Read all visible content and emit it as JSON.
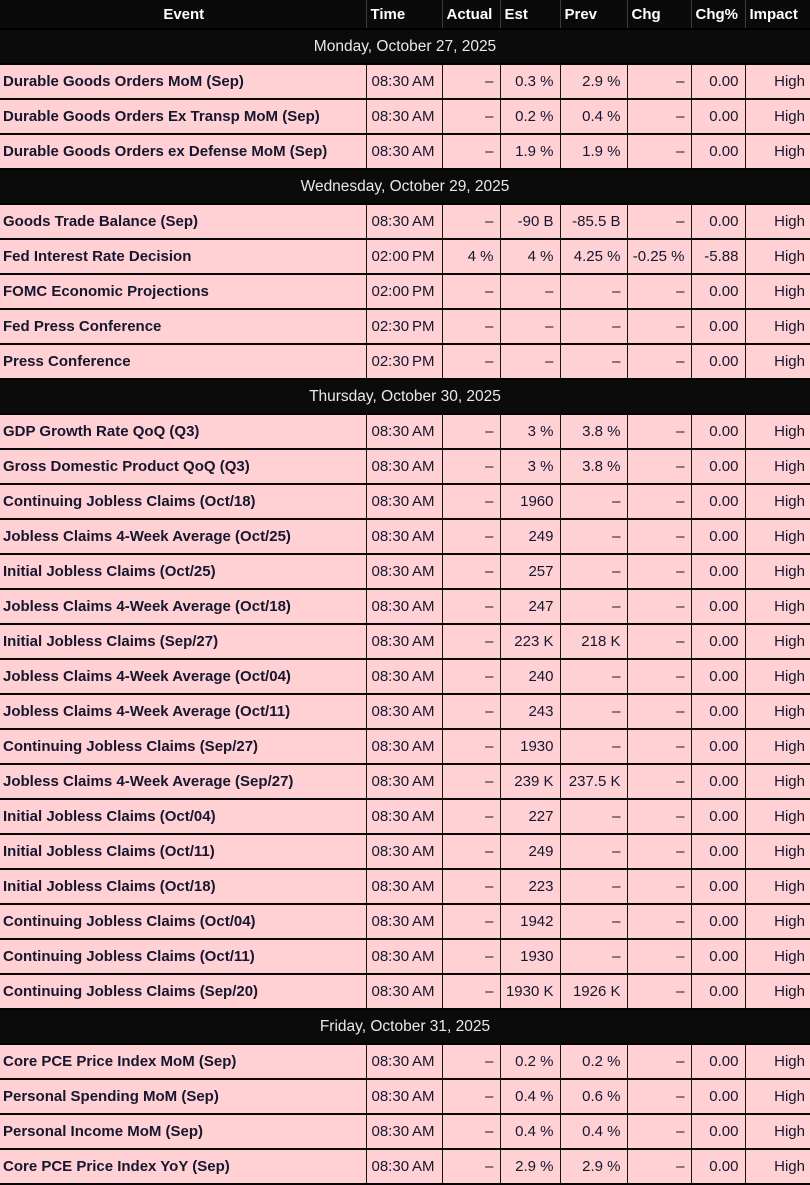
{
  "colors": {
    "row_background": "#ffd1d5",
    "header_background": "#0a0a0a",
    "date_band_background": "#0b0b0b",
    "header_text": "#ffffff",
    "body_text": "#16162e"
  },
  "chart_data": {
    "type": "table",
    "columns": [
      {
        "key": "event",
        "label": "Event"
      },
      {
        "key": "time",
        "label": "Time"
      },
      {
        "key": "actual",
        "label": "Actual"
      },
      {
        "key": "est",
        "label": "Est"
      },
      {
        "key": "prev",
        "label": "Prev"
      },
      {
        "key": "chg",
        "label": "Chg"
      },
      {
        "key": "chgpct",
        "label": "Chg%"
      },
      {
        "key": "impact",
        "label": "Impact"
      }
    ],
    "sections": [
      {
        "date": "Monday, October 27, 2025",
        "rows": [
          [
            "Durable Goods Orders MoM (Sep)",
            "08:30 AM",
            "–",
            "0.3 %",
            "2.9 %",
            "–",
            "0.00",
            "High"
          ],
          [
            "Durable Goods Orders Ex Transp MoM (Sep)",
            "08:30 AM",
            "–",
            "0.2 %",
            "0.4 %",
            "–",
            "0.00",
            "High"
          ],
          [
            "Durable Goods Orders ex Defense MoM (Sep)",
            "08:30 AM",
            "–",
            "1.9 %",
            "1.9 %",
            "–",
            "0.00",
            "High"
          ]
        ]
      },
      {
        "date": "Wednesday, October 29, 2025",
        "rows": [
          [
            "Goods Trade Balance (Sep)",
            "08:30 AM",
            "–",
            "-90 B",
            "-85.5 B",
            "–",
            "0.00",
            "High"
          ],
          [
            "Fed Interest Rate Decision",
            "02:00 PM",
            "4 %",
            "4 %",
            "4.25 %",
            "-0.25 %",
            "-5.88",
            "High"
          ],
          [
            "FOMC Economic Projections",
            "02:00 PM",
            "–",
            "–",
            "–",
            "–",
            "0.00",
            "High"
          ],
          [
            "Fed Press Conference",
            "02:30 PM",
            "–",
            "–",
            "–",
            "–",
            "0.00",
            "High"
          ],
          [
            "Press Conference",
            "02:30 PM",
            "–",
            "–",
            "–",
            "–",
            "0.00",
            "High"
          ]
        ]
      },
      {
        "date": "Thursday, October 30, 2025",
        "rows": [
          [
            "GDP Growth Rate QoQ (Q3)",
            "08:30 AM",
            "–",
            "3 %",
            "3.8 %",
            "–",
            "0.00",
            "High"
          ],
          [
            "Gross Domestic Product QoQ (Q3)",
            "08:30 AM",
            "–",
            "3 %",
            "3.8 %",
            "–",
            "0.00",
            "High"
          ],
          [
            "Continuing Jobless Claims (Oct/18)",
            "08:30 AM",
            "–",
            "1960",
            "–",
            "–",
            "0.00",
            "High"
          ],
          [
            "Jobless Claims 4-Week Average (Oct/25)",
            "08:30 AM",
            "–",
            "249",
            "–",
            "–",
            "0.00",
            "High"
          ],
          [
            "Initial Jobless Claims (Oct/25)",
            "08:30 AM",
            "–",
            "257",
            "–",
            "–",
            "0.00",
            "High"
          ],
          [
            "Jobless Claims 4-Week Average (Oct/18)",
            "08:30 AM",
            "–",
            "247",
            "–",
            "–",
            "0.00",
            "High"
          ],
          [
            "Initial Jobless Claims (Sep/27)",
            "08:30 AM",
            "–",
            "223 K",
            "218 K",
            "–",
            "0.00",
            "High"
          ],
          [
            "Jobless Claims 4-Week Average (Oct/04)",
            "08:30 AM",
            "–",
            "240",
            "–",
            "–",
            "0.00",
            "High"
          ],
          [
            "Jobless Claims 4-Week Average (Oct/11)",
            "08:30 AM",
            "–",
            "243",
            "–",
            "–",
            "0.00",
            "High"
          ],
          [
            "Continuing Jobless Claims (Sep/27)",
            "08:30 AM",
            "–",
            "1930",
            "–",
            "–",
            "0.00",
            "High"
          ],
          [
            "Jobless Claims 4-Week Average (Sep/27)",
            "08:30 AM",
            "–",
            "239 K",
            "237.5 K",
            "–",
            "0.00",
            "High"
          ],
          [
            "Initial Jobless Claims (Oct/04)",
            "08:30 AM",
            "–",
            "227",
            "–",
            "–",
            "0.00",
            "High"
          ],
          [
            "Initial Jobless Claims (Oct/11)",
            "08:30 AM",
            "–",
            "249",
            "–",
            "–",
            "0.00",
            "High"
          ],
          [
            "Initial Jobless Claims (Oct/18)",
            "08:30 AM",
            "–",
            "223",
            "–",
            "–",
            "0.00",
            "High"
          ],
          [
            "Continuing Jobless Claims (Oct/04)",
            "08:30 AM",
            "–",
            "1942",
            "–",
            "–",
            "0.00",
            "High"
          ],
          [
            "Continuing Jobless Claims (Oct/11)",
            "08:30 AM",
            "–",
            "1930",
            "–",
            "–",
            "0.00",
            "High"
          ],
          [
            "Continuing Jobless Claims (Sep/20)",
            "08:30 AM",
            "–",
            "1930 K",
            "1926 K",
            "–",
            "0.00",
            "High"
          ]
        ]
      },
      {
        "date": "Friday, October 31, 2025",
        "rows": [
          [
            "Core PCE Price Index MoM (Sep)",
            "08:30 AM",
            "–",
            "0.2 %",
            "0.2 %",
            "–",
            "0.00",
            "High"
          ],
          [
            "Personal Spending MoM (Sep)",
            "08:30 AM",
            "–",
            "0.4 %",
            "0.6 %",
            "–",
            "0.00",
            "High"
          ],
          [
            "Personal Income MoM (Sep)",
            "08:30 AM",
            "–",
            "0.4 %",
            "0.4 %",
            "–",
            "0.00",
            "High"
          ],
          [
            "Core PCE Price Index YoY (Sep)",
            "08:30 AM",
            "–",
            "2.9 %",
            "2.9 %",
            "–",
            "0.00",
            "High"
          ]
        ]
      }
    ]
  }
}
